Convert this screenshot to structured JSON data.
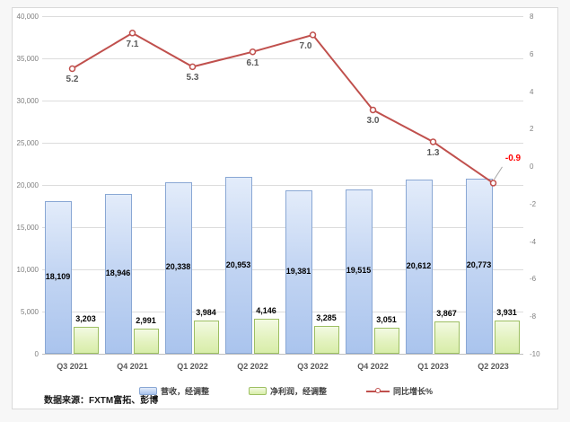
{
  "source_note": "数据来源：FXTM富拓、彭博",
  "colors": {
    "revenue_fill_top": "#e3ecfa",
    "revenue_fill_bottom": "#aac4ed",
    "revenue_border": "#89a7d4",
    "profit_fill_top": "#f3fae2",
    "profit_fill_bottom": "#d8eda9",
    "profit_border": "#9dbf62",
    "growth_line": "#c0504d",
    "negative_label": "#ff0000",
    "gridline": "#dcdcdc",
    "axis_text": "#7f7f7f"
  },
  "chart_data": {
    "type": "bar",
    "subtype": "combo-bar-line-dual-axis",
    "title": "",
    "categories": [
      "Q3 2021",
      "Q4 2021",
      "Q1 2022",
      "Q2 2022",
      "Q3 2022",
      "Q4 2022",
      "Q1 2023",
      "Q2 2023"
    ],
    "series": [
      {
        "name": "营收，经调整",
        "type": "bar",
        "axis": "left",
        "values": [
          18109,
          18946,
          20338,
          20953,
          19381,
          19515,
          20612,
          20773
        ],
        "labels": [
          "18,109",
          "18,946",
          "20,338",
          "20,953",
          "19,381",
          "19,515",
          "20,612",
          "20,773"
        ]
      },
      {
        "name": "净利润，经调整",
        "type": "bar",
        "axis": "left",
        "values": [
          3203,
          2991,
          3984,
          4146,
          3285,
          3051,
          3867,
          3931
        ],
        "labels": [
          "3,203",
          "2,991",
          "3,984",
          "4,146",
          "3,285",
          "3,051",
          "3,867",
          "3,931"
        ]
      },
      {
        "name": "同比增长%",
        "type": "line",
        "axis": "right",
        "values": [
          5.2,
          7.1,
          5.3,
          6.1,
          7.0,
          3.0,
          1.3,
          -0.9
        ],
        "labels": [
          "5.2",
          "7.1",
          "5.3",
          "6.1",
          "7.0",
          "3.0",
          "1.3",
          "-0.9"
        ]
      }
    ],
    "left_axis": {
      "min": 0,
      "max": 40000,
      "step": 5000,
      "ticks": [
        "40,000",
        "35,000",
        "30,000",
        "25,000",
        "20,000",
        "15,000",
        "10,000",
        "5,000",
        "0"
      ]
    },
    "right_axis": {
      "min": -10,
      "max": 8,
      "step": 2,
      "ticks": [
        "8",
        "6",
        "4",
        "2",
        "0",
        "-2",
        "-4",
        "-6",
        "-8",
        "-10"
      ]
    },
    "grid": true,
    "legend_position": "bottom"
  }
}
